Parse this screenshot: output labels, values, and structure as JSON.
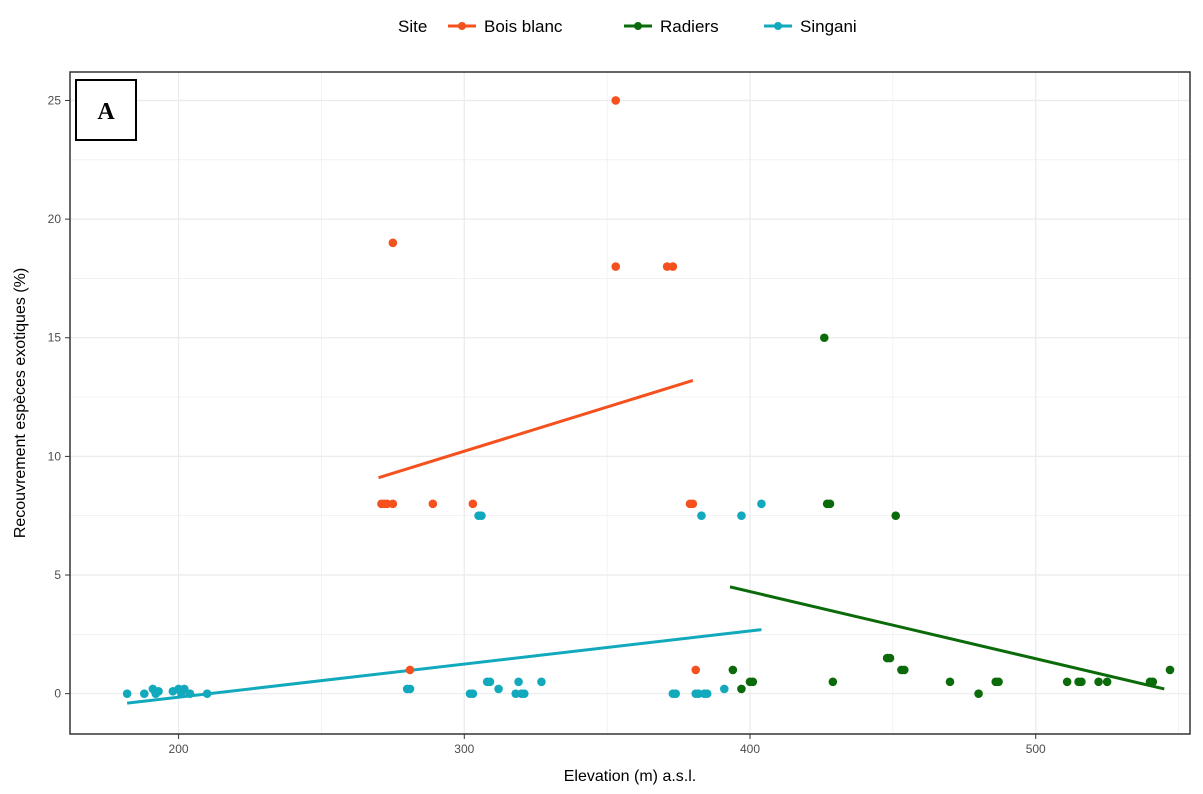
{
  "chart_data": {
    "type": "scatter",
    "panel_label": "A",
    "xlabel": "Elevation (m) a.s.l.",
    "ylabel": "Recouvrement espèces exotiques (%)",
    "xlim": [
      162,
      554
    ],
    "ylim": [
      -1.7,
      26.2
    ],
    "x_ticks": [
      200,
      300,
      400,
      500
    ],
    "y_ticks": [
      0,
      5,
      10,
      15,
      20,
      25
    ],
    "grid": true,
    "legend": {
      "title": "Site",
      "position": "top",
      "entries": [
        "Bois blanc",
        "Radiers",
        "Singani"
      ]
    },
    "series": [
      {
        "name": "Bois blanc",
        "color": "#f4511e",
        "points": [
          [
            271,
            8
          ],
          [
            272,
            8
          ],
          [
            273,
            8
          ],
          [
            275,
            8
          ],
          [
            275,
            19
          ],
          [
            281,
            1
          ],
          [
            289,
            8
          ],
          [
            303,
            8
          ],
          [
            353,
            25
          ],
          [
            353,
            18
          ],
          [
            371,
            18
          ],
          [
            373,
            18
          ],
          [
            379,
            8
          ],
          [
            380,
            8
          ],
          [
            381,
            1
          ]
        ],
        "trend": [
          [
            270,
            9.1
          ],
          [
            380,
            13.2
          ]
        ]
      },
      {
        "name": "Radiers",
        "color": "#0b6b0b",
        "points": [
          [
            394,
            1
          ],
          [
            397,
            0.2
          ],
          [
            400,
            0.5
          ],
          [
            401,
            0.5
          ],
          [
            426,
            15
          ],
          [
            427,
            8
          ],
          [
            428,
            8
          ],
          [
            429,
            0.5
          ],
          [
            448,
            1.5
          ],
          [
            449,
            1.5
          ],
          [
            451,
            7.5
          ],
          [
            453,
            1
          ],
          [
            454,
            1
          ],
          [
            470,
            0.5
          ],
          [
            480,
            0
          ],
          [
            486,
            0.5
          ],
          [
            487,
            0.5
          ],
          [
            511,
            0.5
          ],
          [
            515,
            0.5
          ],
          [
            516,
            0.5
          ],
          [
            522,
            0.5
          ],
          [
            525,
            0.5
          ],
          [
            540,
            0.5
          ],
          [
            541,
            0.5
          ],
          [
            547,
            1
          ]
        ],
        "trend": [
          [
            393,
            4.5
          ],
          [
            545,
            0.2
          ]
        ]
      },
      {
        "name": "Singani",
        "color": "#12a9bd",
        "points": [
          [
            182,
            0
          ],
          [
            188,
            0
          ],
          [
            191,
            0.2
          ],
          [
            192,
            0
          ],
          [
            193,
            0.1
          ],
          [
            198,
            0.1
          ],
          [
            200,
            0.2
          ],
          [
            201,
            0
          ],
          [
            202,
            0.2
          ],
          [
            204,
            0
          ],
          [
            210,
            0
          ],
          [
            280,
            0.2
          ],
          [
            281,
            0.2
          ],
          [
            302,
            0
          ],
          [
            303,
            0
          ],
          [
            305,
            7.5
          ],
          [
            306,
            7.5
          ],
          [
            308,
            0.5
          ],
          [
            309,
            0.5
          ],
          [
            312,
            0.2
          ],
          [
            318,
            0
          ],
          [
            319,
            0.5
          ],
          [
            320,
            0
          ],
          [
            321,
            0
          ],
          [
            327,
            0.5
          ],
          [
            373,
            0
          ],
          [
            374,
            0
          ],
          [
            381,
            0
          ],
          [
            382,
            0
          ],
          [
            383,
            7.5
          ],
          [
            384,
            0
          ],
          [
            385,
            0
          ],
          [
            391,
            0.2
          ],
          [
            397,
            7.5
          ],
          [
            404,
            8
          ]
        ],
        "trend": [
          [
            182,
            -0.4
          ],
          [
            404,
            2.7
          ]
        ]
      }
    ]
  }
}
